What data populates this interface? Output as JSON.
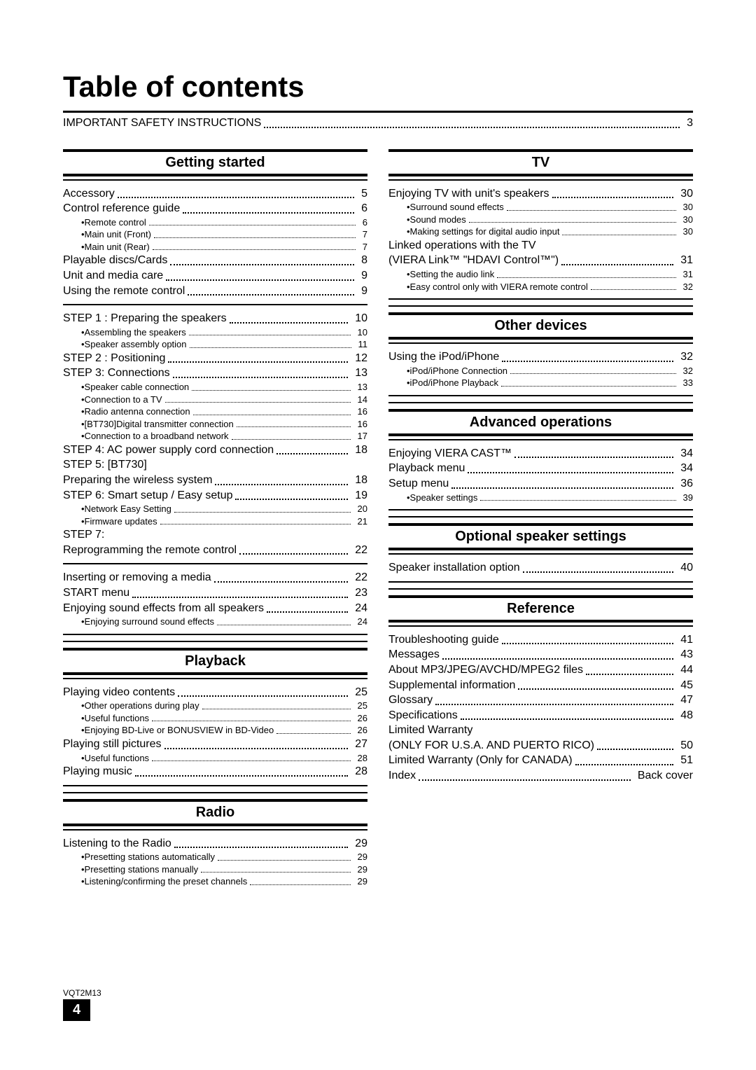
{
  "title": "Table of contents",
  "intro": {
    "label": "IMPORTANT SAFETY INSTRUCTIONS",
    "page": "3"
  },
  "footer": {
    "code": "VQT2M13",
    "page": "4"
  },
  "left": [
    {
      "type": "section",
      "title": "Getting started"
    },
    {
      "type": "entry",
      "label": "Accessory",
      "page": "5"
    },
    {
      "type": "entry",
      "label": "Control reference guide",
      "page": "6"
    },
    {
      "type": "sub",
      "label": "•Remote control",
      "page": "6"
    },
    {
      "type": "sub",
      "label": "•Main unit (Front)",
      "page": "7"
    },
    {
      "type": "sub",
      "label": "•Main unit (Rear)",
      "page": "7"
    },
    {
      "type": "entry",
      "label": "Playable discs/Cards",
      "page": "8"
    },
    {
      "type": "entry",
      "label": "Unit and media care",
      "page": "9"
    },
    {
      "type": "entry",
      "label": "Using the remote control",
      "page": "9"
    },
    {
      "type": "groupsep"
    },
    {
      "type": "entry",
      "label": "STEP 1 : Preparing the speakers",
      "page": "10"
    },
    {
      "type": "sub",
      "label": "•Assembling the speakers",
      "page": "10"
    },
    {
      "type": "sub",
      "label": "•Speaker assembly option",
      "page": "11"
    },
    {
      "type": "entry",
      "label": "STEP 2 : Positioning",
      "page": "12"
    },
    {
      "type": "entry",
      "label": "STEP 3: Connections",
      "page": "13"
    },
    {
      "type": "sub",
      "label": "•Speaker cable connection",
      "page": "13"
    },
    {
      "type": "sub",
      "label": "•Connection to a TV",
      "page": "14"
    },
    {
      "type": "sub",
      "label": "•Radio antenna connection",
      "page": "16"
    },
    {
      "type": "sub",
      "label": "•[BT730]Digital transmitter connection",
      "page": "16"
    },
    {
      "type": "sub",
      "label": "•Connection to a broadband network",
      "page": "17"
    },
    {
      "type": "entry",
      "label": "STEP 4: AC power supply cord connection",
      "page": "18"
    },
    {
      "type": "plain",
      "label": "STEP 5: [BT730]"
    },
    {
      "type": "entry",
      "label": "Preparing the wireless system",
      "page": "18"
    },
    {
      "type": "entry",
      "label": "STEP 6: Smart setup / Easy setup",
      "page": "19"
    },
    {
      "type": "sub",
      "label": "•Network Easy Setting",
      "page": "20"
    },
    {
      "type": "sub",
      "label": "•Firmware updates",
      "page": "21"
    },
    {
      "type": "plain",
      "label": "STEP 7:"
    },
    {
      "type": "entry",
      "label": "Reprogramming the remote control",
      "page": "22"
    },
    {
      "type": "groupsep"
    },
    {
      "type": "entry",
      "label": "Inserting or removing a media",
      "page": "22"
    },
    {
      "type": "entry",
      "label": "START menu",
      "page": "23"
    },
    {
      "type": "entry",
      "label": "Enjoying sound effects from all speakers",
      "page": "24"
    },
    {
      "type": "sub",
      "label": "•Enjoying surround sound effects",
      "page": "24"
    },
    {
      "type": "endsep"
    },
    {
      "type": "section",
      "title": "Playback"
    },
    {
      "type": "entry",
      "label": "Playing video contents",
      "page": "25"
    },
    {
      "type": "sub",
      "label": "•Other operations during play",
      "page": "25"
    },
    {
      "type": "sub",
      "label": "•Useful functions",
      "page": "26"
    },
    {
      "type": "sub",
      "label": "•Enjoying BD-Live or BONUSVIEW in BD-Video",
      "page": "26"
    },
    {
      "type": "entry",
      "label": "Playing still pictures",
      "page": "27"
    },
    {
      "type": "sub",
      "label": "•Useful functions",
      "page": "28"
    },
    {
      "type": "entry",
      "label": "Playing music",
      "page": "28"
    },
    {
      "type": "endsep"
    },
    {
      "type": "section",
      "title": "Radio"
    },
    {
      "type": "entry",
      "label": "Listening to the Radio",
      "page": "29"
    },
    {
      "type": "sub",
      "label": "•Presetting stations automatically",
      "page": "29"
    },
    {
      "type": "sub",
      "label": "•Presetting stations manually",
      "page": "29"
    },
    {
      "type": "sub",
      "label": "•Listening/confirming the preset channels",
      "page": "29"
    }
  ],
  "right": [
    {
      "type": "section",
      "title": "TV"
    },
    {
      "type": "entry",
      "label": "Enjoying TV with unit's speakers",
      "page": "30"
    },
    {
      "type": "sub",
      "label": "•Surround sound effects",
      "page": "30"
    },
    {
      "type": "sub",
      "label": "•Sound modes",
      "page": "30"
    },
    {
      "type": "sub",
      "label": "•Making settings for digital audio input",
      "page": "30"
    },
    {
      "type": "plain",
      "label": "Linked operations with the TV"
    },
    {
      "type": "entry",
      "label": "(VIERA Link™ \"HDAVI Control™\")",
      "page": "31"
    },
    {
      "type": "sub",
      "label": "•Setting the audio link",
      "page": "31"
    },
    {
      "type": "sub",
      "label": "•Easy control only with VIERA remote control",
      "page": "32"
    },
    {
      "type": "endsep"
    },
    {
      "type": "section",
      "title": "Other devices"
    },
    {
      "type": "entry",
      "label": "Using the iPod/iPhone",
      "page": "32"
    },
    {
      "type": "sub",
      "label": "•iPod/iPhone Connection",
      "page": "32"
    },
    {
      "type": "sub",
      "label": "•iPod/iPhone Playback",
      "page": "33"
    },
    {
      "type": "endsep"
    },
    {
      "type": "section",
      "title": "Advanced operations"
    },
    {
      "type": "entry",
      "label": "Enjoying VIERA CAST™",
      "page": "34"
    },
    {
      "type": "entry",
      "label": "Playback menu",
      "page": "34"
    },
    {
      "type": "entry",
      "label": "Setup menu",
      "page": "36"
    },
    {
      "type": "sub",
      "label": "•Speaker settings",
      "page": "39"
    },
    {
      "type": "endsep"
    },
    {
      "type": "section",
      "title": "Optional speaker settings"
    },
    {
      "type": "entry",
      "label": "Speaker installation option",
      "page": "40"
    },
    {
      "type": "endsep"
    },
    {
      "type": "section",
      "title": "Reference"
    },
    {
      "type": "entry",
      "label": "Troubleshooting guide",
      "page": "41"
    },
    {
      "type": "entry",
      "label": "Messages",
      "page": "43"
    },
    {
      "type": "entry",
      "label": "About MP3/JPEG/AVCHD/MPEG2 files",
      "page": "44"
    },
    {
      "type": "entry",
      "label": "Supplemental information",
      "page": "45"
    },
    {
      "type": "entry",
      "label": "Glossary",
      "page": "47"
    },
    {
      "type": "entry",
      "label": "Specifications",
      "page": "48"
    },
    {
      "type": "plain",
      "label": "Limited Warranty"
    },
    {
      "type": "entry",
      "label": "(ONLY FOR U.S.A. AND PUERTO RICO)",
      "page": "50"
    },
    {
      "type": "entry",
      "label": "Limited Warranty (Only for CANADA)",
      "page": "51"
    },
    {
      "type": "entry",
      "label": "Index",
      "page": "Back cover"
    }
  ]
}
